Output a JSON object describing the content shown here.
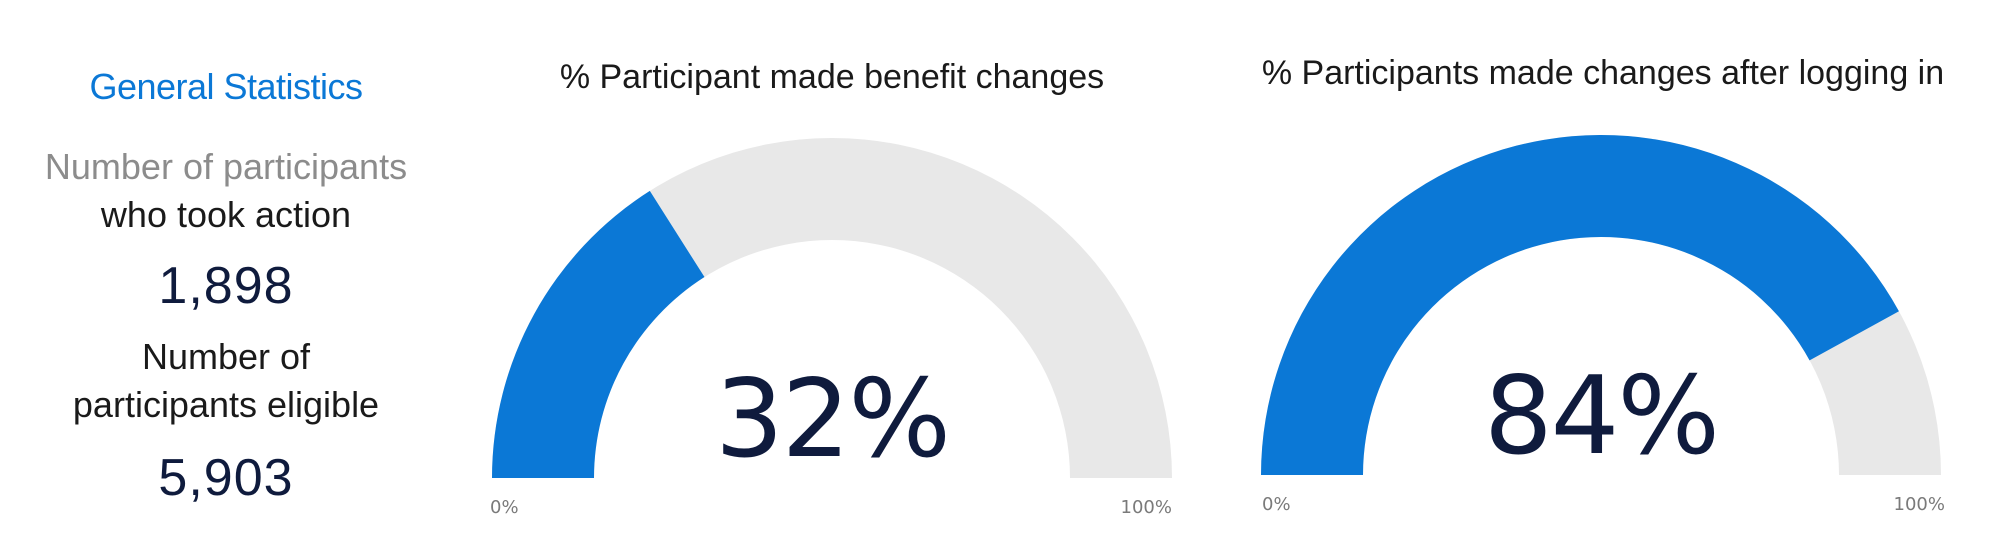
{
  "general_statistics": {
    "title": "General Statistics",
    "took_action_label_line1": "Number of participants",
    "took_action_label_line2": "who took action",
    "took_action_value": "1,898",
    "eligible_label_line1": "Number of",
    "eligible_label_line2": "participants eligible",
    "eligible_value": "5,903"
  },
  "colors": {
    "accent": "#0b78d6",
    "track": "#e8e8e8",
    "value_text": "#0f1b3d"
  },
  "chart_data": [
    {
      "type": "gauge",
      "title": "% Participant made benefit changes",
      "value": 32,
      "value_label": "32%",
      "min": 0,
      "max": 100,
      "min_label": "0%",
      "max_label": "100%"
    },
    {
      "type": "gauge",
      "title": "% Participants made changes after logging in",
      "value": 84,
      "value_label": "84%",
      "min": 0,
      "max": 100,
      "min_label": "0%",
      "max_label": "100%"
    }
  ]
}
